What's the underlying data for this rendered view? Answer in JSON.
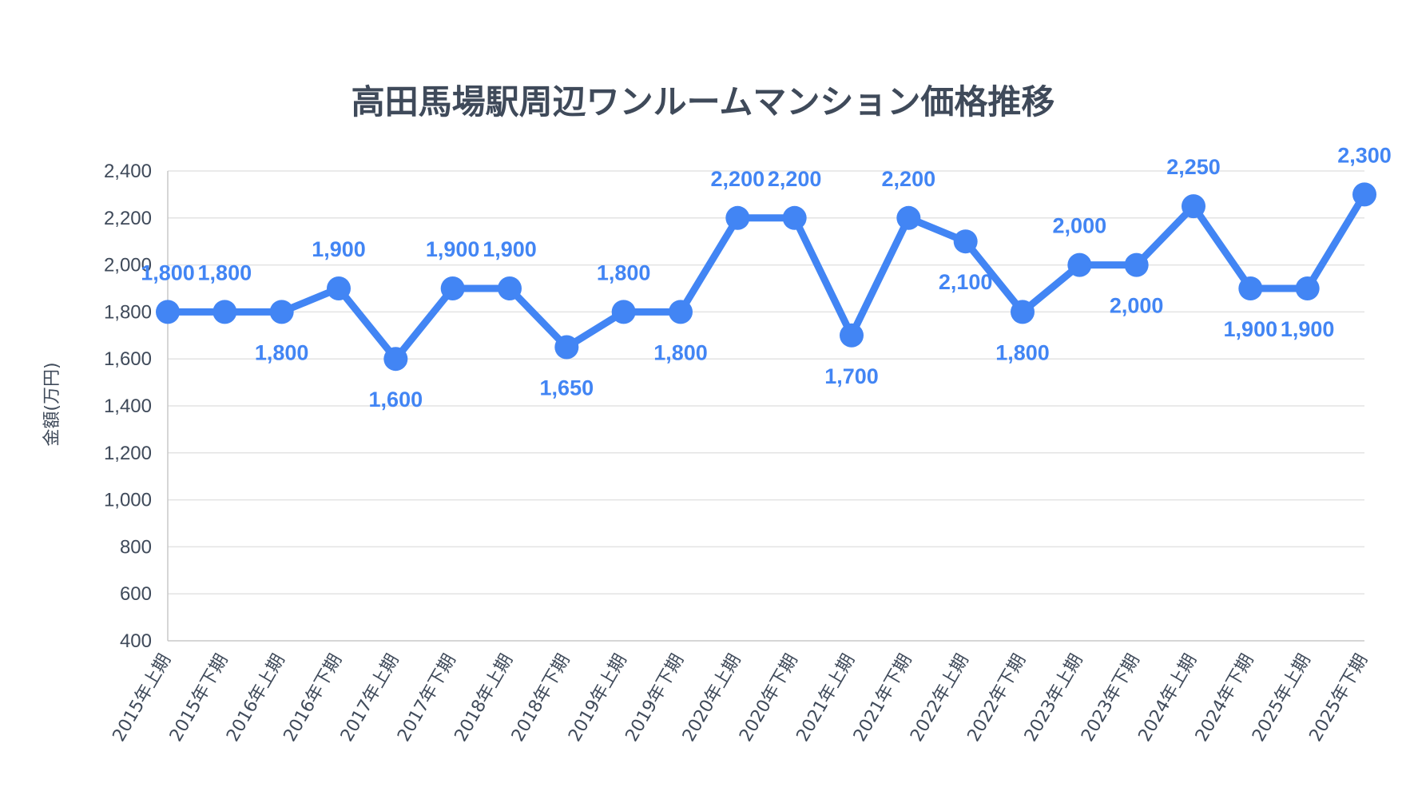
{
  "chart_data": {
    "type": "line",
    "title": "高田馬場駅周辺ワンルームマンション価格推移",
    "ylabel": "金額(万円)",
    "xlabel": "",
    "ylim": [
      400,
      2400
    ],
    "yticks": [
      400,
      600,
      800,
      1000,
      1200,
      1400,
      1600,
      1800,
      2000,
      2200,
      2400
    ],
    "ytick_labels": [
      "400",
      "600",
      "800",
      "1,000",
      "1,200",
      "1,400",
      "1,600",
      "1,800",
      "2,000",
      "2,200",
      "2,400"
    ],
    "grid": true,
    "legend": "none",
    "categories": [
      "2015年上期",
      "2015年下期",
      "2016年上期",
      "2016年下期",
      "2017年上期",
      "2017年下期",
      "2018年上期",
      "2018年下期",
      "2019年上期",
      "2019年下期",
      "2020年上期",
      "2020年下期",
      "2021年上期",
      "2021年下期",
      "2022年上期",
      "2022年下期",
      "2023年上期",
      "2023年下期",
      "2024年上期",
      "2024年下期",
      "2025年上期",
      "2025年下期"
    ],
    "series": [
      {
        "values": [
          1800,
          1800,
          1800,
          1900,
          1600,
          1900,
          1900,
          1650,
          1800,
          1800,
          2200,
          2200,
          1700,
          2200,
          2100,
          1800,
          2000,
          2000,
          2250,
          1900,
          1900,
          2300
        ],
        "data_labels": [
          "1,800",
          "1,800",
          "1,800",
          "1,900",
          "1,600",
          "1,900",
          "1,900",
          "1,650",
          "1,800",
          "1,800",
          "2,200",
          "2,200",
          "1,700",
          "2,200",
          "2,100",
          "1,800",
          "2,000",
          "2,000",
          "2,250",
          "1,900",
          "1,900",
          "2,300"
        ],
        "label_positions": [
          "above",
          "above",
          "below",
          "above",
          "below",
          "above",
          "above",
          "below",
          "above",
          "below",
          "above",
          "above",
          "below",
          "above",
          "below",
          "below",
          "above",
          "below",
          "above",
          "below",
          "below",
          "above"
        ],
        "color": "#4285f4"
      }
    ],
    "colors": {
      "line": "#4285f4",
      "text": "#3f4a5a",
      "grid": "#e3e3e3"
    }
  }
}
